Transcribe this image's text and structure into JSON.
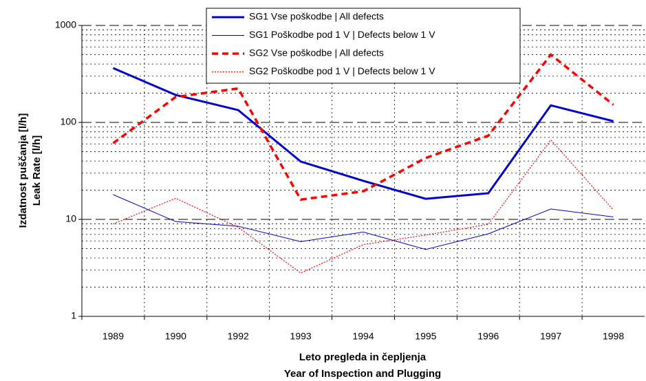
{
  "chart_data": {
    "type": "line",
    "categories": [
      "1989",
      "1990",
      "1992",
      "1993",
      "1994",
      "1995",
      "1996",
      "1997",
      "1998"
    ],
    "series": [
      {
        "name": "SG1 Vse poškodbe | All defects",
        "color": "#0000cc",
        "width": 3,
        "style": "solid",
        "values": [
          363,
          192,
          134,
          39.5,
          25,
          16.3,
          18.6,
          150,
          103
        ]
      },
      {
        "name": "SG1 Poškodbe pod 1 V | Defects below 1 V",
        "color": "#0000cc",
        "width": 1,
        "style": "solid",
        "values": [
          18,
          9.5,
          8.5,
          5.9,
          7.4,
          4.9,
          7.1,
          12.8,
          10.6
        ]
      },
      {
        "name": "SG2 Vse poškodbe | All defects",
        "color": "#ff0000",
        "width": 3.5,
        "style": "dashed",
        "values": [
          61,
          183,
          224,
          16,
          19.5,
          43,
          73,
          500,
          152
        ]
      },
      {
        "name": "SG2 Poškodbe pod 1 V | Defects below 1 V",
        "color": "#ff0000",
        "width": 1.2,
        "style": "dotted",
        "values": [
          9,
          16.5,
          8.3,
          2.8,
          5.5,
          6.9,
          8.9,
          66,
          12.5
        ]
      }
    ],
    "ylim": [
      1,
      1000
    ],
    "yticks": [
      1,
      10,
      100,
      1000
    ],
    "log_scale": true,
    "grid": true,
    "minor_grid": true,
    "legend": "top",
    "ylabel": [
      "Izdatnost puščanja [l/h]",
      "Leak Rate  [l/h]"
    ],
    "xlabel": [
      "Leto pregleda in čepljenja",
      "Year of Inspection and Plugging"
    ]
  }
}
